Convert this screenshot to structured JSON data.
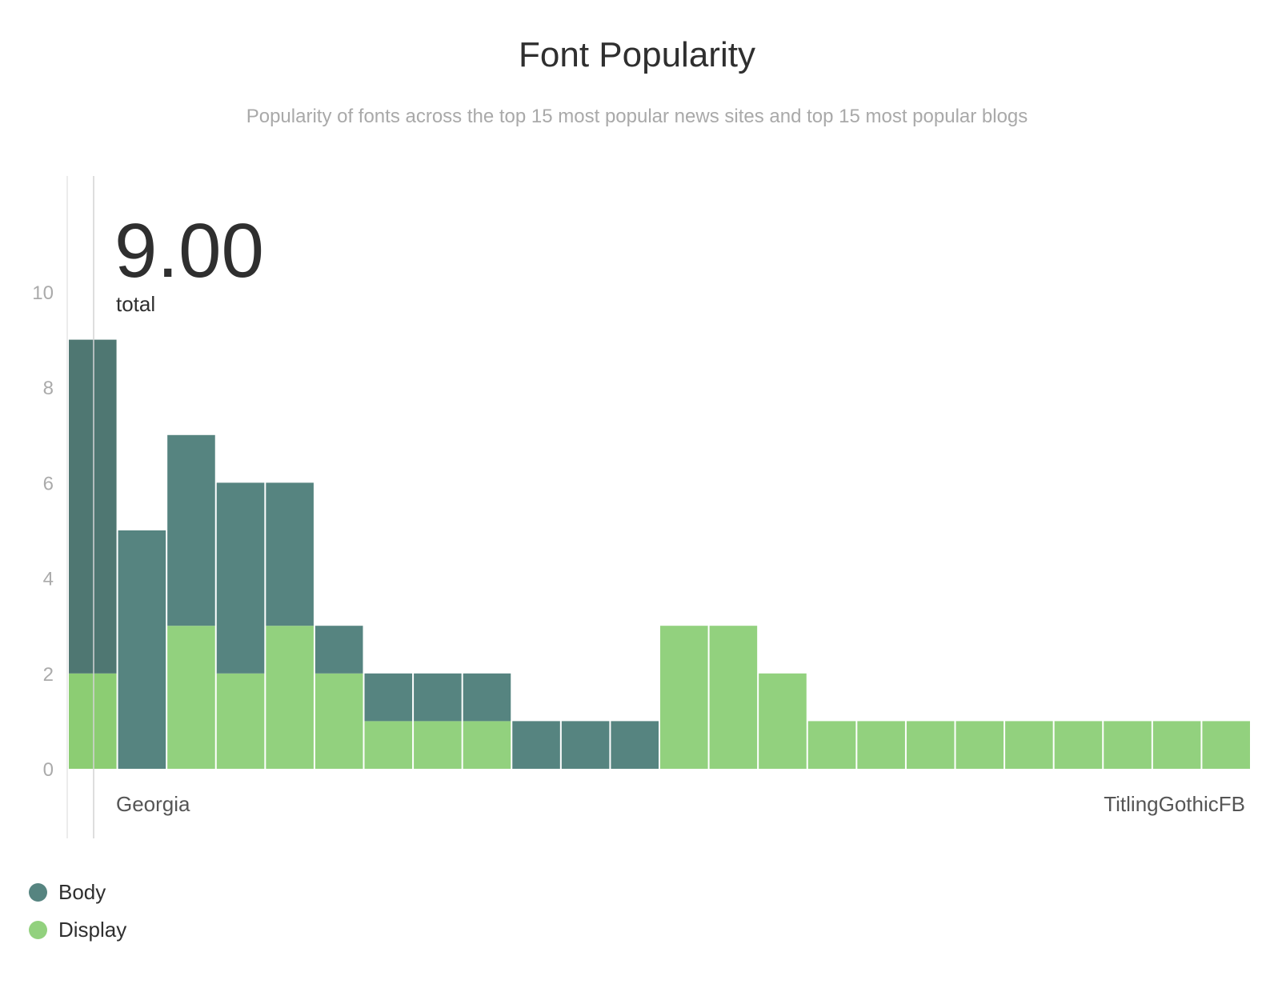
{
  "chart_data": {
    "type": "bar",
    "stacked": true,
    "title": "Font Popularity",
    "subtitle": "Popularity of fonts across the top 15 most popular news sites and top 15 most popular blogs",
    "ylim": [
      0,
      12
    ],
    "yticks": [
      0,
      2,
      4,
      6,
      8,
      10
    ],
    "xtick_labels": [
      "Georgia",
      "TitlingGothicFB"
    ],
    "readout": {
      "value": "9.00",
      "label": "total"
    },
    "series": [
      {
        "name": "Body",
        "color": "#568480",
        "values": [
          7,
          5,
          4,
          4,
          3,
          1,
          1,
          1,
          1,
          1,
          1,
          1,
          0,
          0,
          0,
          0,
          0,
          0,
          0,
          0,
          0,
          0,
          0,
          0
        ]
      },
      {
        "name": "Display",
        "color": "#92d17e",
        "values": [
          2,
          0,
          3,
          2,
          3,
          2,
          1,
          1,
          1,
          0,
          0,
          0,
          3,
          3,
          2,
          1,
          1,
          1,
          1,
          1,
          1,
          1,
          1,
          1
        ]
      }
    ],
    "legend_position": "bottom-left",
    "grid": false
  }
}
